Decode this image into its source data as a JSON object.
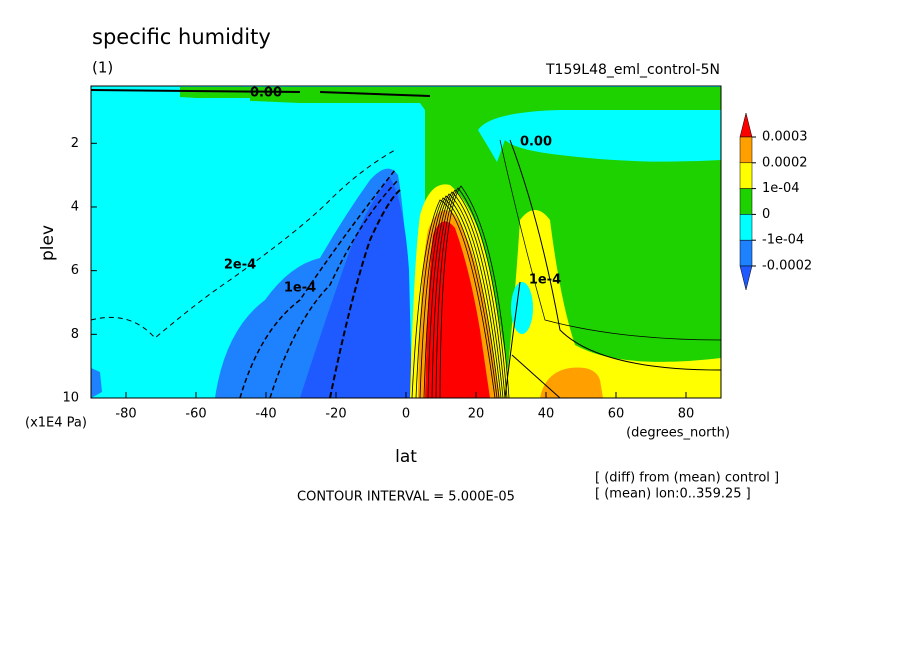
{
  "chart_data": {
    "type": "contour",
    "title": "specific humidity",
    "subtitle": "(1)",
    "dataset": "T159L48_eml_control-5N",
    "xlabel": "lat",
    "xunits": "(degrees_north)",
    "ylabel": "plev",
    "yunits": "(x1E4 Pa)",
    "xlim": [
      -90,
      90
    ],
    "xticks": [
      -80,
      -60,
      -40,
      -20,
      0,
      20,
      40,
      60,
      80
    ],
    "ylim": [
      0.2,
      10
    ],
    "y_inverted": true,
    "yticks": [
      2,
      4,
      6,
      8,
      10
    ],
    "colorbar": {
      "levels": [
        0.0003,
        0.0002,
        {
          "value": 0.0001,
          "label": "1e-04"
        },
        0,
        {
          "value": -0.0001,
          "label": "-1e-04"
        },
        -0.0002
      ],
      "colors": [
        "#ff0000",
        "#ff9f00",
        "#ffff00",
        "#1ed200",
        "#00ffff",
        "#1e82ff",
        "#1e5aff"
      ]
    },
    "contour_labels": [
      "0.00",
      "0.00",
      "1e-4",
      "2e-4",
      "1e-4"
    ],
    "footer": "CONTOUR INTERVAL = 5.000E-05",
    "notes": [
      "[ (diff) from (mean) control ]",
      "[ (mean) lon:0..359.25 ]"
    ]
  }
}
